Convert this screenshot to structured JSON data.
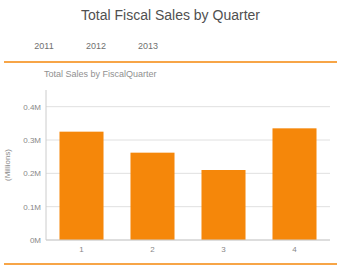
{
  "chart_data": {
    "type": "bar",
    "title": "Total Fiscal Sales by Quarter",
    "annotations": [
      "2011",
      "2012",
      "2013"
    ],
    "subtitle": "Total Sales by FiscalQuarter",
    "ylabel": "(Millions)",
    "categories": [
      "1",
      "2",
      "3",
      "4"
    ],
    "values": [
      0.325,
      0.262,
      0.21,
      0.335
    ],
    "color": "#F5870A",
    "ylim": [
      0,
      0.45
    ],
    "yticks": [
      {
        "value": 0,
        "label": "0M"
      },
      {
        "value": 0.1,
        "label": "0.1M"
      },
      {
        "value": 0.2,
        "label": "0.2M"
      },
      {
        "value": 0.3,
        "label": "0.3M"
      },
      {
        "value": 0.4,
        "label": "0.4M"
      }
    ],
    "grid": true
  }
}
